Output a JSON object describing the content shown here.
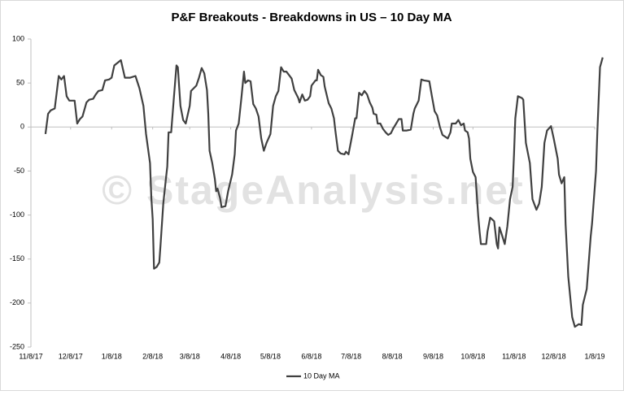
{
  "chart_data": {
    "type": "line",
    "title": "P&F Breakouts - Breakdowns in US – 10 Day MA",
    "watermark": "© StageAnalysis.net",
    "x": [
      "11/19/17",
      "11/21/17",
      "11/23/17",
      "11/26/17",
      "11/29/17",
      "12/1/17",
      "12/3/17",
      "12/5/17",
      "12/7/17",
      "12/11/17",
      "12/13/17",
      "12/15/17",
      "12/17/17",
      "12/20/17",
      "12/22/17",
      "12/25/17",
      "12/27/17",
      "12/29/17",
      "1/1/18",
      "1/3/18",
      "1/6/18",
      "1/8/18",
      "1/10/18",
      "1/15/18",
      "1/18/18",
      "1/22/18",
      "1/26/18",
      "1/29/18",
      "2/1/18",
      "2/3/18",
      "2/6/18",
      "2/7/18",
      "2/8/18",
      "2/9/18",
      "2/11/18",
      "2/13/18",
      "2/14/18",
      "2/16/18",
      "2/18/18",
      "2/19/18",
      "2/20/18",
      "2/22/18",
      "2/24/18",
      "2/26/18",
      "2/27/18",
      "3/1/18",
      "3/3/18",
      "3/5/18",
      "3/8/18",
      "3/9/18",
      "3/13/18",
      "3/15/18",
      "3/17/18",
      "3/19/18",
      "3/21/18",
      "3/22/18",
      "3/23/18",
      "3/25/18",
      "3/27/18",
      "3/28/18",
      "3/29/18",
      "3/31/18",
      "4/1/18",
      "4/4/18",
      "4/6/18",
      "4/9/18",
      "4/11/18",
      "4/12/18",
      "4/14/18",
      "4/16/18",
      "4/18/18",
      "4/19/18",
      "4/21/18",
      "4/23/18",
      "4/25/18",
      "4/27/18",
      "4/29/18",
      "5/1/18",
      "5/3/18",
      "5/5/18",
      "5/8/18",
      "5/10/18",
      "5/12/18",
      "5/14/18",
      "5/16/18",
      "5/18/18",
      "5/20/18",
      "5/24/18",
      "5/26/18",
      "5/29/18",
      "5/30/18",
      "6/1/18",
      "6/3/18",
      "6/5/18",
      "6/7/18",
      "6/8/18",
      "6/11/18",
      "6/12/18",
      "6/13/18",
      "6/15/18",
      "6/17/18",
      "6/18/18",
      "6/21/18",
      "6/23/18",
      "6/25/18",
      "6/26/18",
      "6/28/18",
      "6/30/18",
      "7/3/18",
      "7/4/18",
      "7/6/18",
      "7/8/18",
      "7/9/18",
      "7/11/18",
      "7/12/18",
      "7/14/18",
      "7/16/18",
      "7/18/18",
      "7/20/18",
      "7/22/18",
      "7/24/18",
      "7/25/18",
      "7/27/18",
      "7/28/18",
      "7/30/18",
      "8/1/18",
      "8/3/18",
      "8/5/18",
      "8/7/18",
      "8/9/18",
      "8/11/18",
      "8/13/18",
      "8/15/18",
      "8/16/18",
      "8/19/18",
      "8/22/18",
      "8/24/18",
      "8/25/18",
      "8/28/18",
      "8/30/18",
      "9/1/18",
      "9/5/18",
      "9/7/18",
      "9/9/18",
      "9/11/18",
      "9/13/18",
      "9/15/18",
      "9/17/18",
      "9/19/18",
      "9/21/18",
      "9/22/18",
      "9/25/18",
      "9/27/18",
      "9/29/18",
      "10/1/18",
      "10/2/18",
      "10/4/18",
      "10/5/18",
      "10/6/18",
      "10/8/18",
      "10/10/18",
      "10/12/18",
      "10/13/18",
      "10/14/18",
      "10/16/18",
      "10/18/18",
      "10/19/18",
      "10/21/18",
      "10/24/18",
      "10/26/18",
      "10/27/18",
      "10/28/18",
      "10/30/18",
      "11/1/18",
      "11/3/18",
      "11/5/18",
      "11/7/18",
      "11/8/18",
      "11/9/18",
      "11/11/18",
      "11/14/18",
      "11/15/18",
      "11/17/18",
      "11/20/18",
      "11/22/18",
      "11/25/18",
      "11/27/18",
      "11/29/18",
      "12/1/18",
      "12/3/18",
      "12/6/18",
      "12/8/18",
      "12/11/18",
      "12/12/18",
      "12/14/18",
      "12/16/18",
      "12/17/18",
      "12/19/18",
      "12/22/18",
      "12/24/18",
      "12/27/18",
      "12/29/18",
      "12/30/18",
      "1/2/19",
      "1/5/19",
      "1/6/19",
      "1/9/19",
      "1/10/19",
      "1/12/19",
      "1/14/19"
    ],
    "series": [
      {
        "name": "10 Day MA",
        "color": "#404040",
        "values": [
          -8,
          15,
          19,
          21,
          58,
          54,
          58,
          35,
          30,
          30,
          4,
          9,
          12,
          28,
          31,
          32,
          37,
          41,
          42,
          53,
          54,
          56,
          70,
          76,
          56,
          56,
          58,
          44,
          24,
          -8,
          -41,
          -80,
          -105,
          -161,
          -159,
          -154,
          -133,
          -87,
          -59,
          -45,
          -6,
          -6,
          33,
          70,
          68,
          24,
          8,
          4,
          24,
          41,
          47,
          56,
          67,
          61,
          42,
          15,
          -27,
          -41,
          -59,
          -73,
          -70,
          -81,
          -91,
          -90,
          -73,
          -54,
          -31,
          -4,
          4,
          33,
          63,
          50,
          53,
          52,
          26,
          21,
          12,
          -13,
          -27,
          -18,
          -8,
          24,
          35,
          41,
          68,
          63,
          63,
          55,
          42,
          33,
          28,
          37,
          30,
          31,
          35,
          47,
          53,
          53,
          65,
          59,
          57,
          46,
          27,
          21,
          10,
          -4,
          -27,
          -30,
          -31,
          -28,
          -31,
          -15,
          -7,
          10,
          10,
          39,
          36,
          41,
          37,
          28,
          22,
          15,
          14,
          4,
          4,
          -2,
          -6,
          -9,
          -7,
          -1,
          4,
          9,
          9,
          -4,
          -4,
          -3,
          15,
          21,
          30,
          54,
          53,
          52,
          35,
          18,
          13,
          0,
          -9,
          -11,
          -13,
          -6,
          4,
          4,
          8,
          2,
          4,
          -4,
          -6,
          -13,
          -36,
          -51,
          -57,
          -101,
          -119,
          -133,
          -133,
          -133,
          -119,
          -103,
          -107,
          -133,
          -138,
          -114,
          -123,
          -133,
          -113,
          -82,
          -68,
          -31,
          10,
          35,
          33,
          31,
          -18,
          -41,
          -82,
          -94,
          -87,
          -68,
          -18,
          -4,
          1,
          -13,
          -36,
          -54,
          -64,
          -57,
          -110,
          -170,
          -216,
          -227,
          -224,
          -225,
          -202,
          -184,
          -124,
          -110,
          -50,
          -4,
          68,
          79
        ]
      }
    ],
    "xlim": [
      "11/8/17",
      "1/8/19"
    ],
    "xticks": [
      "11/8/17",
      "12/8/17",
      "1/8/18",
      "2/8/18",
      "3/8/18",
      "4/8/18",
      "5/8/18",
      "6/8/18",
      "7/8/18",
      "8/8/18",
      "9/8/18",
      "10/8/18",
      "11/8/18",
      "12/8/18",
      "1/8/19"
    ],
    "ylim": [
      -250,
      100
    ],
    "yticks": [
      -250,
      -200,
      -150,
      -100,
      -50,
      0,
      50,
      100
    ],
    "legend": "bottom"
  }
}
